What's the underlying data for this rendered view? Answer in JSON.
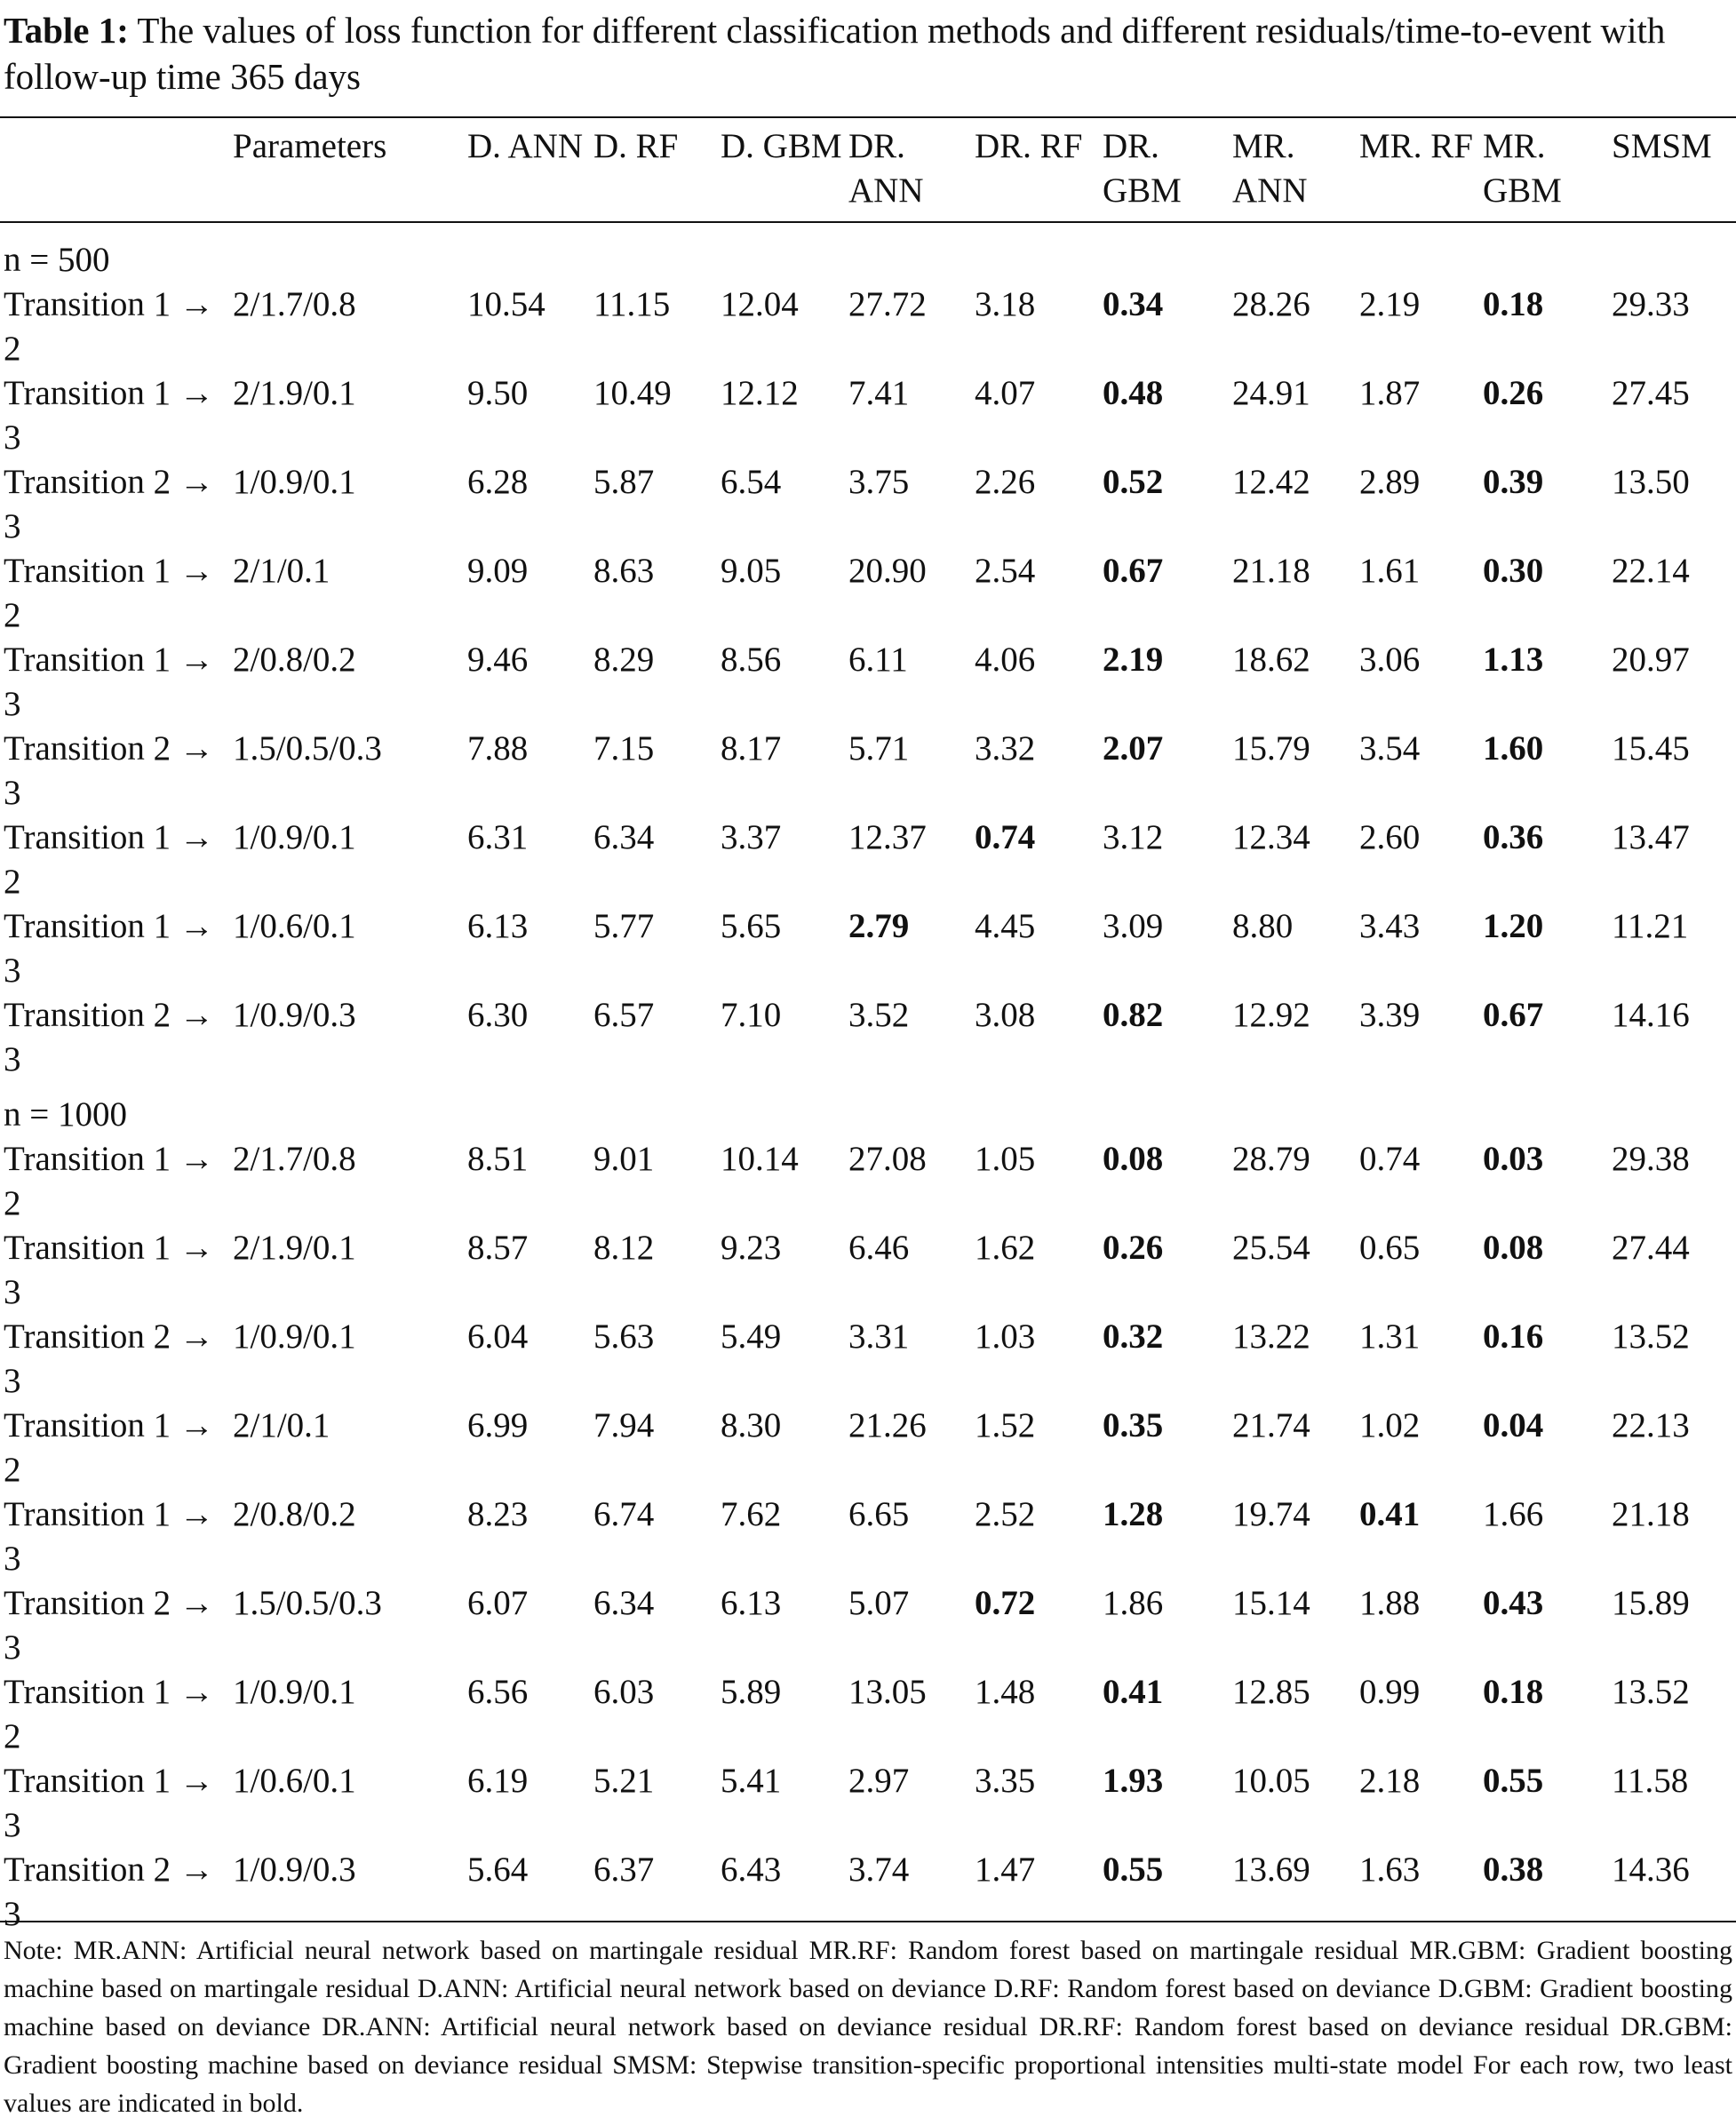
{
  "caption": {
    "label": "Table 1:",
    "text": " The values of loss function for different classification methods and different residuals/time-to-event with follow-up time 365 days"
  },
  "columns": [
    "",
    "Parameters",
    "D. ANN",
    "D. RF",
    "D. GBM",
    "DR. ANN",
    "DR. RF",
    "DR. GBM",
    "MR. ANN",
    "MR. RF",
    "MR. GBM",
    "SMSM"
  ],
  "groups": [
    {
      "label": "n = 500",
      "rows": [
        {
          "transition": "Transition 1 → 2",
          "params": "2/1.7/0.8",
          "values": [
            "10.54",
            "11.15",
            "12.04",
            "27.72",
            "3.18",
            "0.34",
            "28.26",
            "2.19",
            "0.18",
            "29.33"
          ],
          "bold": [
            5,
            8
          ]
        },
        {
          "transition": "Transition 1 → 3",
          "params": "2/1.9/0.1",
          "values": [
            "9.50",
            "10.49",
            "12.12",
            "7.41",
            "4.07",
            "0.48",
            "24.91",
            "1.87",
            "0.26",
            "27.45"
          ],
          "bold": [
            5,
            8
          ]
        },
        {
          "transition": "Transition 2 → 3",
          "params": "1/0.9/0.1",
          "values": [
            "6.28",
            "5.87",
            "6.54",
            "3.75",
            "2.26",
            "0.52",
            "12.42",
            "2.89",
            "0.39",
            "13.50"
          ],
          "bold": [
            5,
            8
          ]
        },
        {
          "transition": "Transition 1 → 2",
          "params": "2/1/0.1",
          "values": [
            "9.09",
            "8.63",
            "9.05",
            "20.90",
            "2.54",
            "0.67",
            "21.18",
            "1.61",
            "0.30",
            "22.14"
          ],
          "bold": [
            5,
            8
          ]
        },
        {
          "transition": "Transition 1 → 3",
          "params": "2/0.8/0.2",
          "values": [
            "9.46",
            "8.29",
            "8.56",
            "6.11",
            "4.06",
            "2.19",
            "18.62",
            "3.06",
            "1.13",
            "20.97"
          ],
          "bold": [
            5,
            8
          ]
        },
        {
          "transition": "Transition 2 → 3",
          "params": "1.5/0.5/0.3",
          "values": [
            "7.88",
            "7.15",
            "8.17",
            "5.71",
            "3.32",
            "2.07",
            "15.79",
            "3.54",
            "1.60",
            "15.45"
          ],
          "bold": [
            5,
            8
          ]
        },
        {
          "transition": "Transition 1 → 2",
          "params": "1/0.9/0.1",
          "values": [
            "6.31",
            "6.34",
            "3.37",
            "12.37",
            "0.74",
            "3.12",
            "12.34",
            "2.60",
            "0.36",
            "13.47"
          ],
          "bold": [
            4,
            8
          ]
        },
        {
          "transition": "Transition 1 → 3",
          "params": "1/0.6/0.1",
          "values": [
            "6.13",
            "5.77",
            "5.65",
            "2.79",
            "4.45",
            "3.09",
            "8.80",
            "3.43",
            "1.20",
            "11.21"
          ],
          "bold": [
            3,
            8
          ]
        },
        {
          "transition": "Transition 2 → 3",
          "params": "1/0.9/0.3",
          "values": [
            "6.30",
            "6.57",
            "7.10",
            "3.52",
            "3.08",
            "0.82",
            "12.92",
            "3.39",
            "0.67",
            "14.16"
          ],
          "bold": [
            5,
            8
          ]
        }
      ]
    },
    {
      "label": "n = 1000",
      "rows": [
        {
          "transition": "Transition 1 → 2",
          "params": "2/1.7/0.8",
          "values": [
            "8.51",
            "9.01",
            "10.14",
            "27.08",
            "1.05",
            "0.08",
            "28.79",
            "0.74",
            "0.03",
            "29.38"
          ],
          "bold": [
            5,
            8
          ]
        },
        {
          "transition": "Transition 1 → 3",
          "params": "2/1.9/0.1",
          "values": [
            "8.57",
            "8.12",
            "9.23",
            "6.46",
            "1.62",
            "0.26",
            "25.54",
            "0.65",
            "0.08",
            "27.44"
          ],
          "bold": [
            5,
            8
          ]
        },
        {
          "transition": "Transition 2 → 3",
          "params": "1/0.9/0.1",
          "values": [
            "6.04",
            "5.63",
            "5.49",
            "3.31",
            "1.03",
            "0.32",
            "13.22",
            "1.31",
            "0.16",
            "13.52"
          ],
          "bold": [
            5,
            8
          ]
        },
        {
          "transition": "Transition 1 → 2",
          "params": "2/1/0.1",
          "values": [
            "6.99",
            "7.94",
            "8.30",
            "21.26",
            "1.52",
            "0.35",
            "21.74",
            "1.02",
            "0.04",
            "22.13"
          ],
          "bold": [
            5,
            8
          ]
        },
        {
          "transition": "Transition 1 → 3",
          "params": "2/0.8/0.2",
          "values": [
            "8.23",
            "6.74",
            "7.62",
            "6.65",
            "2.52",
            "1.28",
            "19.74",
            "0.41",
            "1.66",
            "21.18"
          ],
          "bold": [
            5,
            7
          ]
        },
        {
          "transition": "Transition 2 → 3",
          "params": "1.5/0.5/0.3",
          "values": [
            "6.07",
            "6.34",
            "6.13",
            "5.07",
            "0.72",
            "1.86",
            "15.14",
            "1.88",
            "0.43",
            "15.89"
          ],
          "bold": [
            4,
            8
          ]
        },
        {
          "transition": "Transition 1 → 2",
          "params": "1/0.9/0.1",
          "values": [
            "6.56",
            "6.03",
            "5.89",
            "13.05",
            "1.48",
            "0.41",
            "12.85",
            "0.99",
            "0.18",
            "13.52"
          ],
          "bold": [
            5,
            8
          ]
        },
        {
          "transition": "Transition 1 → 3",
          "params": "1/0.6/0.1",
          "values": [
            "6.19",
            "5.21",
            "5.41",
            "2.97",
            "3.35",
            "1.93",
            "10.05",
            "2.18",
            "0.55",
            "11.58"
          ],
          "bold": [
            5,
            8
          ]
        },
        {
          "transition": "Transition 2 → 3",
          "params": "1/0.9/0.3",
          "values": [
            "5.64",
            "6.37",
            "6.43",
            "3.74",
            "1.47",
            "0.55",
            "13.69",
            "1.63",
            "0.38",
            "14.36"
          ],
          "bold": [
            5,
            8
          ]
        }
      ]
    }
  ],
  "note": "Note: MR.ANN: Artificial neural network based on martingale residual MR.RF: Random forest based on martingale residual MR.GBM: Gradient boosting machine based on martingale residual D.ANN: Artificial neural network based on deviance D.RF: Random forest based on deviance D.GBM: Gradient boosting machine based on deviance DR.ANN: Artificial neural network based on deviance residual DR.RF: Random forest based on deviance residual DR.GBM: Gradient boosting machine based on deviance residual SMSM: Stepwise transition-specific proportional intensities multi-state model For each row, two least values are indicated in bold."
}
